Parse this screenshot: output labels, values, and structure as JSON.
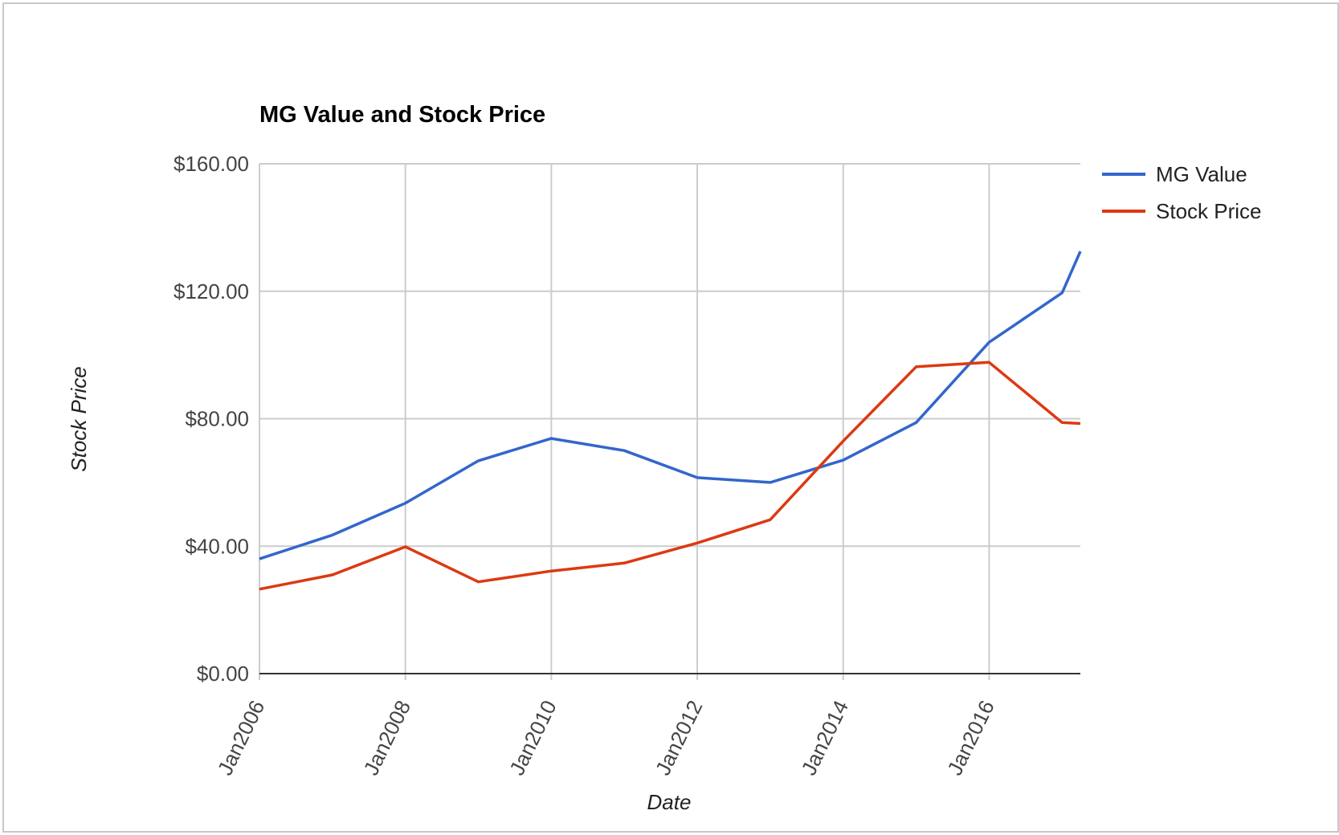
{
  "chart_data": {
    "type": "line",
    "title": "MG Value and Stock Price",
    "xlabel": "Date",
    "ylabel": "Stock Price",
    "x_tick_labels": [
      "Jan2006",
      "Jan2008",
      "Jan2010",
      "Jan2012",
      "Jan2014",
      "Jan2016"
    ],
    "y_tick_labels": [
      "$0.00",
      "$40.00",
      "$80.00",
      "$120.00",
      "$160.00"
    ],
    "y_ticks": [
      0,
      40,
      80,
      120,
      160
    ],
    "ylim": [
      0,
      160
    ],
    "xlim": [
      "2006-01",
      "2017-04"
    ],
    "grid": true,
    "legend_position": "right",
    "x": [
      "2006-01",
      "2007-01",
      "2008-01",
      "2009-01",
      "2010-01",
      "2011-01",
      "2012-01",
      "2013-01",
      "2014-01",
      "2015-01",
      "2016-01",
      "2017-01",
      "2017-04"
    ],
    "series": [
      {
        "name": "MG Value",
        "color": "#3366cc",
        "values": [
          36,
          43.5,
          53.5,
          66.8,
          73.8,
          70,
          61.5,
          60,
          67,
          78.8,
          104,
          119.5,
          132.5
        ]
      },
      {
        "name": "Stock Price",
        "color": "#dc3912",
        "values": [
          26.5,
          31,
          39.8,
          28.8,
          32.2,
          34.7,
          41,
          48.3,
          73,
          96.3,
          97.7,
          78.8,
          78.5
        ]
      }
    ]
  }
}
